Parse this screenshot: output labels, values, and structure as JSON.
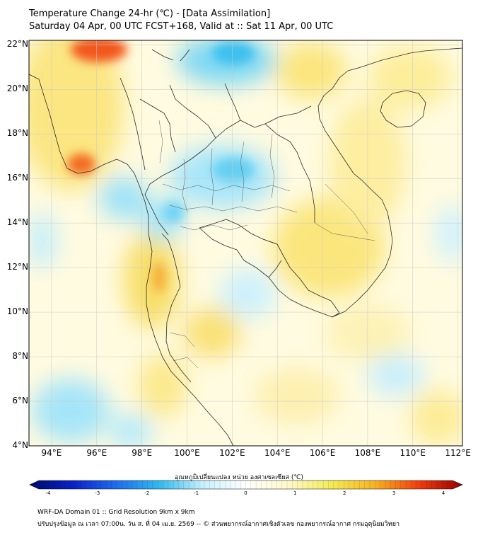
{
  "title": {
    "line1": "Temperature Change 24-hr (℃) - [Data Assimilation]",
    "line2": "Saturday 04 Apr, 00 UTC FCST+168, Valid at :: Sat 11 Apr, 00 UTC"
  },
  "map": {
    "lat_labels": [
      "22°N",
      "20°N",
      "18°N",
      "16°N",
      "14°N",
      "12°N",
      "10°N",
      "8°N",
      "6°N",
      "4°N"
    ],
    "lon_labels": [
      "94°E",
      "96°E",
      "98°E",
      "100°E",
      "102°E",
      "104°E",
      "106°E",
      "108°E",
      "110°E",
      "112°E"
    ],
    "lat_range": [
      4,
      22.2
    ],
    "lon_range": [
      93,
      112.2
    ]
  },
  "colorbar": {
    "title": "อุณหภูมิเปลี่ยนแปลง หน่วย องศาเซลเซียส (℃)",
    "ticks": [
      "-4",
      "-3",
      "-2",
      "-1",
      "0",
      "1",
      "2",
      "3",
      "4"
    ],
    "min": -4,
    "max": 4,
    "colors": [
      "#000a6e",
      "#0a22c8",
      "#1e6ef0",
      "#2fbcf0",
      "#c8f0ff",
      "#ffffff",
      "#fff8c8",
      "#f4ec50",
      "#f8b020",
      "#f03c0c",
      "#960000"
    ]
  },
  "footer": {
    "line1": "WRF-DA Domain 01 :: Grid Resolution 9km x 9km",
    "line2": "ปรับปรุงข้อมูล ณ เวลา 07:00น. วัน ส. ที่ 04 เม.ย. 2569 -- © ส่วนพยากรณ์อากาศเชิงตัวเลข กองพยากรณ์อากาศ กรมอุตุนิยมวิทยา"
  }
}
